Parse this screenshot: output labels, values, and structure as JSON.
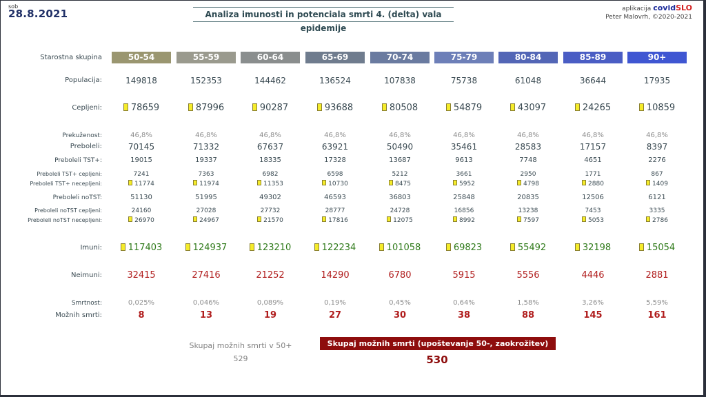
{
  "header": {
    "day": "sob",
    "date": "28.8.2021",
    "title": "Analiza imunosti in potenciala smrti 4. (delta) vala epidemije",
    "app_prefix": "aplikacija",
    "brand_a": "covid",
    "brand_b": "SLO",
    "author": "Peter Malovrh, ©2020-2021"
  },
  "colors": {
    "group_headers": [
      "#9a9670",
      "#9a9a8e",
      "#8a8e8e",
      "#6f7c8e",
      "#6a7ba0",
      "#6d7fb8",
      "#5366b6",
      "#4a5dc4",
      "#3f56d2"
    ],
    "positive": "#2f7a1a",
    "negative": "#b01c1c",
    "muted": "#8c8c8c"
  },
  "age_groups": [
    "50-54",
    "55-59",
    "60-64",
    "65-69",
    "70-74",
    "75-79",
    "80-84",
    "85-89",
    "90+"
  ],
  "rows": [
    {
      "label": "Starostna skupina",
      "key": "hdr"
    },
    {
      "label": "Populacija:",
      "values": [
        "149818",
        "152353",
        "144462",
        "136524",
        "107838",
        "75738",
        "61048",
        "36644",
        "17935"
      ]
    },
    {
      "label": "Cepljeni:",
      "values": [
        "78659",
        "87996",
        "90287",
        "93688",
        "80508",
        "54879",
        "43097",
        "24265",
        "10859"
      ],
      "marker": true
    },
    {
      "label": "Prekuženost:",
      "values": [
        "46,8%",
        "46,8%",
        "46,8%",
        "46,8%",
        "46,8%",
        "46,8%",
        "46,8%",
        "46,8%",
        "46,8%"
      ]
    },
    {
      "label": "Preboleli:",
      "values": [
        "70145",
        "71332",
        "67637",
        "63921",
        "50490",
        "35461",
        "28583",
        "17157",
        "8397"
      ]
    },
    {
      "label": "Preboleli TST+:",
      "values": [
        "19015",
        "19337",
        "18335",
        "17328",
        "13687",
        "9613",
        "7748",
        "4651",
        "2276"
      ]
    },
    {
      "label": "Preboleli TST+ cepljeni:",
      "values": [
        "7241",
        "7363",
        "6982",
        "6598",
        "5212",
        "3661",
        "2950",
        "1771",
        "867"
      ]
    },
    {
      "label": "Preboleli TST+ necepljeni:",
      "values": [
        "11774",
        "11974",
        "11353",
        "10730",
        "8475",
        "5952",
        "4798",
        "2880",
        "1409"
      ],
      "marker": true
    },
    {
      "label": "Preboleli noTST:",
      "values": [
        "51130",
        "51995",
        "49302",
        "46593",
        "36803",
        "25848",
        "20835",
        "12506",
        "6121"
      ]
    },
    {
      "label": "Preboleli noTST cepljeni:",
      "values": [
        "24160",
        "27028",
        "27732",
        "28777",
        "24728",
        "16856",
        "13238",
        "7453",
        "3335"
      ]
    },
    {
      "label": "Preboleli noTST necepljeni:",
      "values": [
        "26970",
        "24967",
        "21570",
        "17816",
        "12075",
        "8992",
        "7597",
        "5053",
        "2786"
      ],
      "marker": true
    },
    {
      "label": "Imuni:",
      "values": [
        "117403",
        "124937",
        "123210",
        "122234",
        "101058",
        "69823",
        "55492",
        "32198",
        "15054"
      ],
      "marker": true
    },
    {
      "label": "Neimuni:",
      "values": [
        "32415",
        "27416",
        "21252",
        "14290",
        "6780",
        "5915",
        "5556",
        "4446",
        "2881"
      ]
    },
    {
      "label": "Smrtnost:",
      "values": [
        "0,025%",
        "0,046%",
        "0,089%",
        "0,19%",
        "0,45%",
        "0,64%",
        "1,58%",
        "3,26%",
        "5,59%"
      ]
    },
    {
      "label": "Možnih smrti:",
      "values": [
        "8",
        "13",
        "19",
        "27",
        "30",
        "38",
        "88",
        "145",
        "161"
      ]
    }
  ],
  "summary": {
    "left_label": "Skupaj možnih smrti v 50+",
    "left_value": "529",
    "right_label": "Skupaj možnih smrti (upoštevanje 50-, zaokrožitev)",
    "right_value": "530"
  }
}
